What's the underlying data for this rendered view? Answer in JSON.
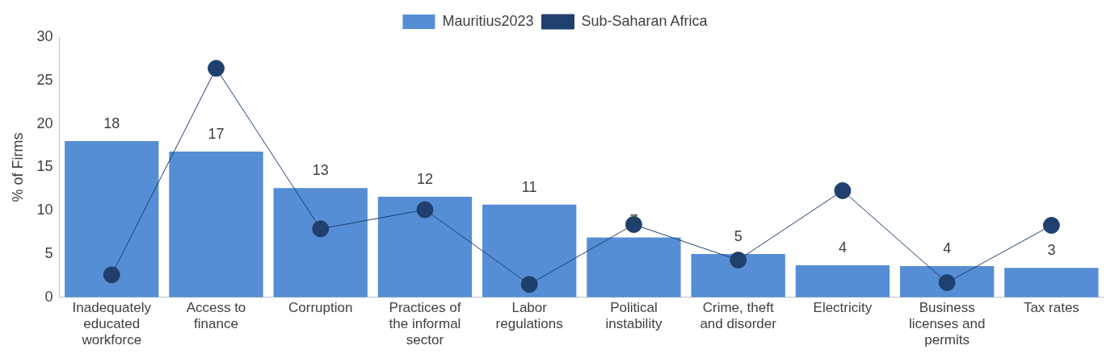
{
  "chart_data": {
    "type": "bar",
    "ylabel": "% of Firms",
    "categories": [
      "Inadequately educated workforce",
      "Access to finance",
      "Corruption",
      "Practices of the informal sector",
      "Labor regulations",
      "Political instability",
      "Crime, theft and disorder",
      "Electricity",
      "Business licenses and permits",
      "Tax rates"
    ],
    "series": [
      {
        "name": "Mauritius2023",
        "color": "#558ed5",
        "values": [
          18.0,
          16.8,
          12.6,
          11.6,
          10.7,
          6.9,
          5.0,
          3.7,
          3.6,
          3.4
        ],
        "value_labels": [
          "18",
          "17",
          "13",
          "12",
          "11",
          "7",
          "5",
          "4",
          "4",
          "3"
        ]
      },
      {
        "name": "Sub-Saharan Africa",
        "type": "line",
        "color": "#1f3f6e",
        "values": [
          2.6,
          26.4,
          7.9,
          10.1,
          1.5,
          8.4,
          4.3,
          12.3,
          1.7,
          8.3
        ]
      }
    ],
    "ylim": [
      0,
      30
    ],
    "yticks": [
      0,
      5,
      10,
      15,
      20,
      25,
      30
    ],
    "grid": false,
    "legend": "top",
    "marker": "circle"
  }
}
